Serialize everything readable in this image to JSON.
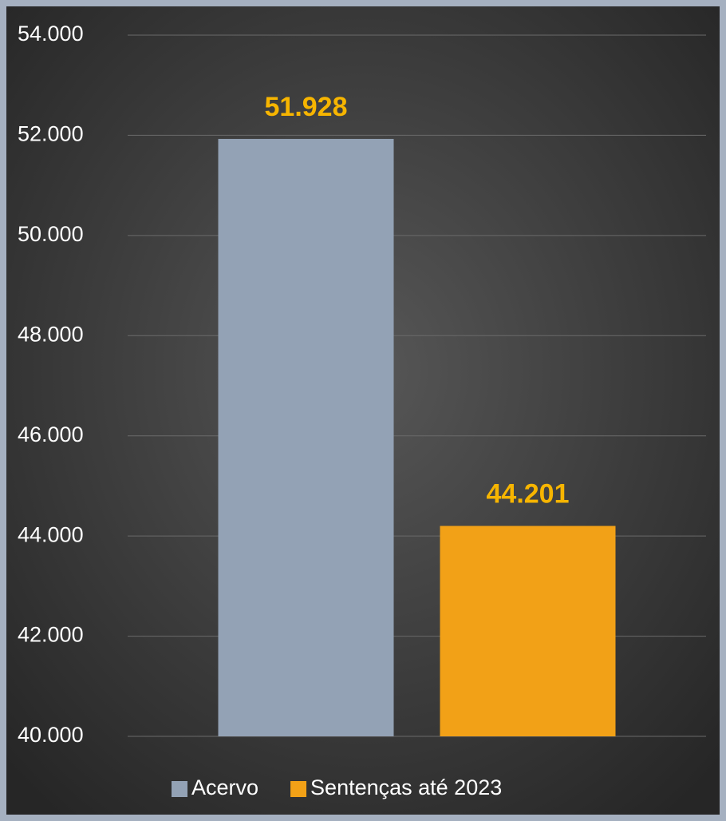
{
  "chart_data": {
    "type": "bar",
    "categories": [
      null
    ],
    "series": [
      {
        "name": "Acervo",
        "color": "#93a2b5",
        "values": [
          51928
        ],
        "value_labels": [
          "51.928"
        ]
      },
      {
        "name": "Sentenças até 2023",
        "color": "#f2a117",
        "values": [
          44201
        ],
        "value_labels": [
          "44.201"
        ]
      }
    ],
    "ylim": [
      40000,
      54000
    ],
    "yticks": [
      {
        "value": 40000,
        "label": "40.000"
      },
      {
        "value": 42000,
        "label": "42.000"
      },
      {
        "value": 44000,
        "label": "44.000"
      },
      {
        "value": 46000,
        "label": "46.000"
      },
      {
        "value": 48000,
        "label": "48.000"
      },
      {
        "value": 50000,
        "label": "50.000"
      },
      {
        "value": 52000,
        "label": "52.000"
      },
      {
        "value": 54000,
        "label": "54.000"
      }
    ],
    "grid": true,
    "legend": "bottom"
  }
}
